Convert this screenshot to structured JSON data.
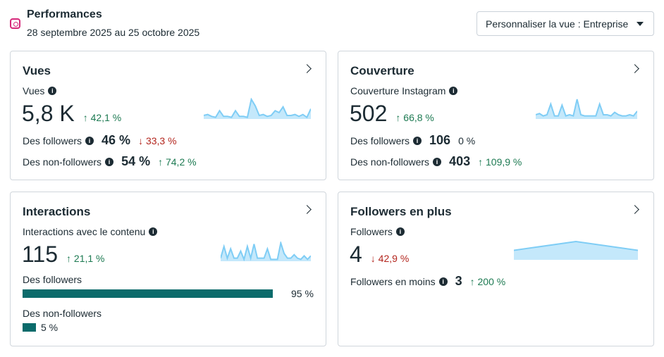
{
  "header": {
    "title": "Performances",
    "date_range": "28 septembre 2025 au 25 octobre 2025",
    "view_select": "Personnaliser la vue : Entreprise"
  },
  "colors": {
    "up": "#1d7a52",
    "down": "#b3261e",
    "bar": "#0b6b6b",
    "spark": "#7fcdf5"
  },
  "vues": {
    "title": "Vues",
    "label": "Vues",
    "value": "5,8 K",
    "delta": "↑ 42,1 %",
    "followers_label": "Des followers",
    "followers_value": "46 %",
    "followers_delta": "↓ 33,3 %",
    "nonfollowers_label": "Des non-followers",
    "nonfollowers_value": "54 %",
    "nonfollowers_delta": "↑ 74,2 %",
    "spark": [
      3,
      4,
      2,
      1,
      8,
      2,
      2,
      1,
      8,
      2,
      2,
      1,
      20,
      13,
      3,
      4,
      2,
      3,
      8,
      6,
      12,
      3,
      3,
      4,
      2,
      4,
      1,
      10
    ]
  },
  "couverture": {
    "title": "Couverture",
    "label": "Couverture Instagram",
    "value": "502",
    "delta": "↑ 66,8 %",
    "followers_label": "Des followers",
    "followers_value": "106",
    "followers_delta": "0 %",
    "nonfollowers_label": "Des non-followers",
    "nonfollowers_value": "403",
    "nonfollowers_delta": "↑ 109,9 %",
    "spark": [
      3,
      4,
      2,
      3,
      12,
      2,
      2,
      11,
      2,
      3,
      2,
      16,
      3,
      2,
      2,
      2,
      2,
      12,
      3,
      3,
      2,
      5,
      3,
      2,
      2,
      3,
      2,
      6
    ]
  },
  "interactions": {
    "title": "Interactions",
    "label": "Interactions avec le contenu",
    "value": "115",
    "delta": "↑ 21,1 %",
    "followers_label": "Des followers",
    "followers_pct": 95,
    "followers_value": "95 %",
    "nonfollowers_label": "Des non-followers",
    "nonfollowers_pct": 5,
    "nonfollowers_value": "5 %",
    "spark": [
      2,
      12,
      2,
      10,
      2,
      2,
      8,
      1,
      12,
      2,
      14,
      2,
      2,
      2,
      10,
      1,
      1,
      1,
      15,
      6,
      2,
      2,
      5,
      2,
      1,
      4,
      1,
      4
    ]
  },
  "followers": {
    "title": "Followers en plus",
    "label": "Followers",
    "value": "4",
    "delta": "↓ 42,9 %",
    "lost_label": "Followers en moins",
    "lost_value": "3",
    "lost_delta": "↑ 200 %",
    "spark": [
      10,
      20,
      10
    ]
  }
}
